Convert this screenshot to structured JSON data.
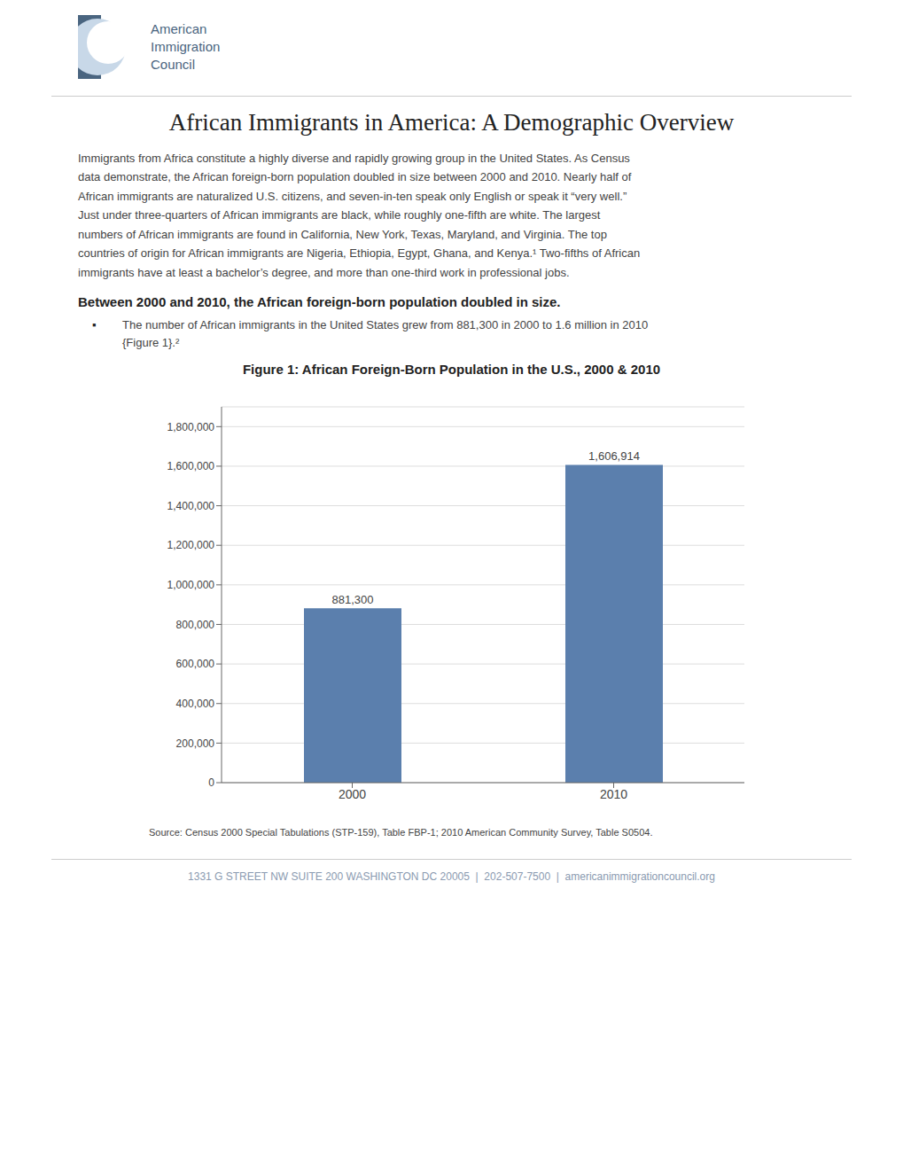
{
  "chart_data": {
    "type": "bar",
    "title": "Figure 1: African Foreign-Born Population in the U.S., 2000 & 2010",
    "categories": [
      "2000",
      "2010"
    ],
    "values": [
      881300,
      1606914
    ],
    "value_labels": [
      "881,300",
      "1,606,914"
    ],
    "data_labels": true,
    "color": "#5b7fad",
    "ylim": [
      0,
      1900000
    ],
    "yticks": [
      0,
      {
        "value": 200000,
        "label": "200,000"
      },
      {
        "value": 400000,
        "label": "400,000"
      },
      {
        "value": 600000,
        "label": "600,000"
      },
      {
        "value": 800000,
        "label": "800,000"
      },
      {
        "value": 1000000,
        "label": "1,000,000"
      },
      {
        "value": 1200000,
        "label": "1,200,000"
      },
      {
        "value": 1400000,
        "label": "1,400,000"
      },
      {
        "value": 1600000,
        "label": "1,600,000"
      },
      {
        "value": 1800000,
        "label": "1,800,000"
      }
    ],
    "grid": true,
    "annotations": [
      "American",
      "Immigration",
      "Council",
      "African Immigrants in America: A Demographic Overview",
      "Immigrants from Africa constitute a highly diverse and rapidly growing group in the United States. As Census\ndata demonstrate, the African foreign-born population doubled in size between 2000 and 2010. Nearly half of\nAfrican immigrants are naturalized U.S. citizens, and seven-in-ten speak only English or speak it “very well.”\nJust under three-quarters of African immigrants are black, while roughly one-fifth are white. The largest\nnumbers of African immigrants are found in California, New York, Texas, Maryland, and Virginia. The top\ncountries of origin for African immigrants are Nigeria, Ethiopia, Egypt, Ghana, and Kenya.¹ Two-fifths of African\nimmigrants have at least a bachelor’s degree, and more than one-third work in professional jobs.",
      "Between 2000 and 2010, the African foreign-born population doubled in size.",
      "▪",
      "The number of African immigrants in the United States grew from 881,300 in 2000 to 1.6 million in 2010\n{Figure 1}.²",
      "Source: Census 2000 Special Tabulations (STP-159), Table FBP-1; 2010 American Community Survey, Table S0504.",
      "1331 G STREET NW SUITE 200 WASHINGTON DC 20005  |  202-507-7500  |  americanimmigrationcouncil.org"
    ]
  }
}
